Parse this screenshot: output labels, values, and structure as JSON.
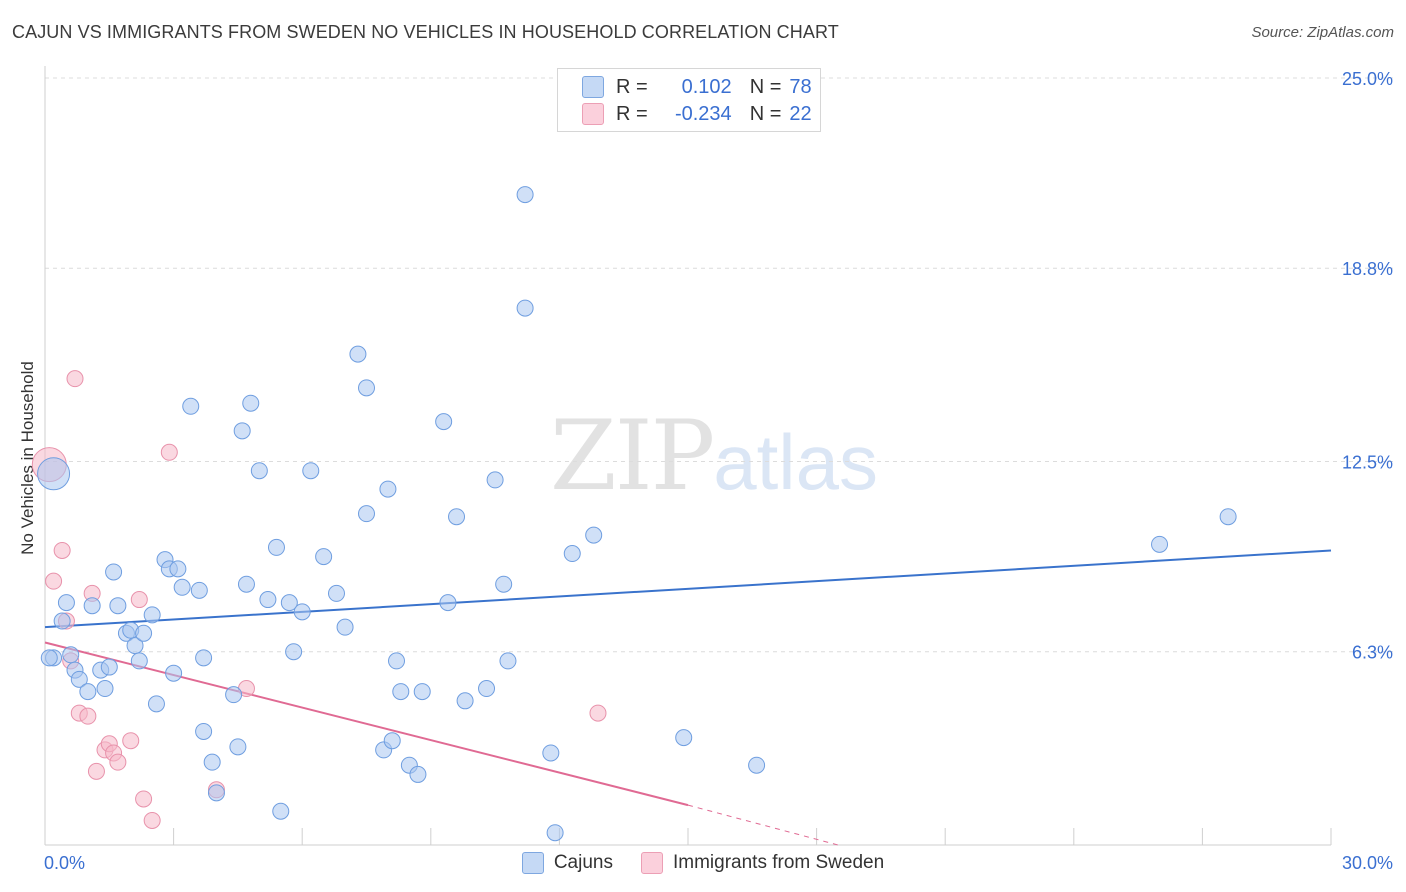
{
  "header": {
    "title": "CAJUN VS IMMIGRANTS FROM SWEDEN NO VEHICLES IN HOUSEHOLD CORRELATION CHART",
    "source": "Source: ZipAtlas.com"
  },
  "watermark": {
    "zip": "ZIP",
    "atlas": "atlas"
  },
  "legend": {
    "rows": [
      {
        "r_label": "R =",
        "r_value": "0.102",
        "n_label": "N =",
        "n_value": "78",
        "color": "#a9c6f0"
      },
      {
        "r_label": "R =",
        "r_value": "-0.234",
        "n_label": "N =",
        "n_value": "22",
        "color": "#f5b8c9"
      }
    ]
  },
  "bottom_legend": {
    "cajuns": "Cajuns",
    "sweden": "Immigrants from Sweden"
  },
  "colors": {
    "blue_fill": "#a9c6f0",
    "blue_stroke": "#6f9ee0",
    "blue_line": "#3a73cc",
    "pink_fill": "#f5b8c9",
    "pink_stroke": "#e892ab",
    "pink_line": "#e06a93",
    "grid": "#dcdcdc",
    "tick_text": "#3a6fd1"
  },
  "chart_data": {
    "type": "scatter",
    "title": "CAJUN VS IMMIGRANTS FROM SWEDEN NO VEHICLES IN HOUSEHOLD CORRELATION CHART",
    "xlabel": "",
    "ylabel": "No Vehicles in Household",
    "xlim": [
      0,
      30
    ],
    "ylim": [
      0,
      25.0
    ],
    "x_tick_labels": [
      "0.0%",
      "30.0%"
    ],
    "y_ticks": [
      6.3,
      12.5,
      18.8,
      25.0
    ],
    "y_tick_labels": [
      "6.3%",
      "12.5%",
      "18.8%",
      "25.0%"
    ],
    "series": [
      {
        "name": "Cajuns",
        "r": 0.102,
        "n": 78,
        "trend": [
          [
            0,
            7.1
          ],
          [
            30,
            9.6
          ]
        ],
        "points": [
          [
            0.2,
            12.1
          ],
          [
            0.2,
            6.1
          ],
          [
            0.4,
            7.3
          ],
          [
            0.5,
            7.9
          ],
          [
            0.6,
            6.2
          ],
          [
            0.7,
            5.7
          ],
          [
            0.8,
            5.4
          ],
          [
            1.0,
            5.0
          ],
          [
            1.1,
            7.8
          ],
          [
            1.3,
            5.7
          ],
          [
            1.4,
            5.1
          ],
          [
            1.6,
            8.9
          ],
          [
            1.7,
            7.8
          ],
          [
            1.9,
            6.9
          ],
          [
            2.0,
            7.0
          ],
          [
            2.1,
            6.5
          ],
          [
            2.2,
            6.0
          ],
          [
            2.3,
            6.9
          ],
          [
            2.5,
            7.5
          ],
          [
            2.6,
            4.6
          ],
          [
            2.8,
            9.3
          ],
          [
            2.9,
            9.0
          ],
          [
            3.0,
            5.6
          ],
          [
            3.1,
            9.0
          ],
          [
            3.2,
            8.4
          ],
          [
            3.4,
            14.3
          ],
          [
            3.6,
            8.3
          ],
          [
            3.7,
            3.7
          ],
          [
            3.7,
            6.1
          ],
          [
            3.9,
            2.7
          ],
          [
            4.0,
            1.7
          ],
          [
            4.4,
            4.9
          ],
          [
            4.5,
            3.2
          ],
          [
            4.6,
            13.5
          ],
          [
            4.7,
            8.5
          ],
          [
            4.8,
            14.4
          ],
          [
            5.0,
            12.2
          ],
          [
            5.2,
            8.0
          ],
          [
            5.4,
            9.7
          ],
          [
            5.5,
            1.1
          ],
          [
            5.7,
            7.9
          ],
          [
            5.8,
            6.3
          ],
          [
            6.0,
            7.6
          ],
          [
            6.2,
            12.2
          ],
          [
            6.5,
            9.4
          ],
          [
            6.8,
            8.2
          ],
          [
            7.0,
            7.1
          ],
          [
            7.3,
            16.0
          ],
          [
            7.5,
            10.8
          ],
          [
            7.5,
            14.9
          ],
          [
            7.9,
            3.1
          ],
          [
            8.0,
            11.6
          ],
          [
            8.1,
            3.4
          ],
          [
            8.2,
            6.0
          ],
          [
            8.3,
            5.0
          ],
          [
            8.5,
            2.6
          ],
          [
            8.7,
            2.3
          ],
          [
            8.8,
            5.0
          ],
          [
            9.3,
            13.8
          ],
          [
            9.4,
            7.9
          ],
          [
            9.6,
            10.7
          ],
          [
            9.8,
            4.7
          ],
          [
            10.3,
            5.1
          ],
          [
            10.5,
            11.9
          ],
          [
            10.7,
            8.5
          ],
          [
            10.8,
            6.0
          ],
          [
            11.2,
            21.2
          ],
          [
            11.2,
            17.5
          ],
          [
            11.8,
            3.0
          ],
          [
            11.9,
            0.4
          ],
          [
            12.3,
            9.5
          ],
          [
            12.8,
            10.1
          ],
          [
            14.9,
            3.5
          ],
          [
            16.6,
            2.6
          ],
          [
            26.0,
            9.8
          ],
          [
            27.6,
            10.7
          ],
          [
            0.1,
            6.1
          ],
          [
            1.5,
            5.8
          ]
        ]
      },
      {
        "name": "Immigrants from Sweden",
        "r": -0.234,
        "n": 22,
        "trend": [
          [
            0,
            6.6
          ],
          [
            15,
            1.3
          ]
        ],
        "trend_dashed": [
          [
            15,
            1.3
          ],
          [
            18.5,
            0.0
          ]
        ],
        "points": [
          [
            0.1,
            12.4
          ],
          [
            0.2,
            8.6
          ],
          [
            0.4,
            9.6
          ],
          [
            0.5,
            7.3
          ],
          [
            0.6,
            6.0
          ],
          [
            0.7,
            15.2
          ],
          [
            0.8,
            4.3
          ],
          [
            1.0,
            4.2
          ],
          [
            1.1,
            8.2
          ],
          [
            1.2,
            2.4
          ],
          [
            1.4,
            3.1
          ],
          [
            1.5,
            3.3
          ],
          [
            1.6,
            3.0
          ],
          [
            1.7,
            2.7
          ],
          [
            2.0,
            3.4
          ],
          [
            2.2,
            8.0
          ],
          [
            2.3,
            1.5
          ],
          [
            2.5,
            0.8
          ],
          [
            2.9,
            12.8
          ],
          [
            4.0,
            1.8
          ],
          [
            4.7,
            5.1
          ],
          [
            12.9,
            4.3
          ]
        ]
      }
    ]
  }
}
